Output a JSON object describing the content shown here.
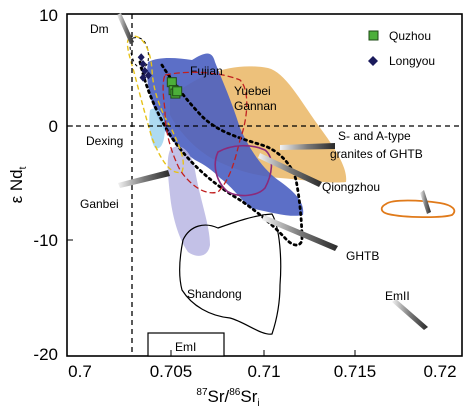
{
  "chart_data": {
    "type": "scatter",
    "xlabel": "87Sr/86Sr",
    "ylabel": "ε Nd",
    "xlim": [
      0.7,
      0.72
    ],
    "ylim": [
      -20,
      10
    ],
    "x_ticks": [
      "0.7",
      "0.705",
      "0.71",
      "0.715",
      "0.72"
    ],
    "y_ticks": [
      "10",
      "0",
      "-10",
      "-20"
    ],
    "legend": {
      "placement": "top-right"
    },
    "series": [
      {
        "name": "Quzhou",
        "marker": "square",
        "color": "#4caf3a",
        "points": [
          [
            0.7051,
            4.0
          ],
          [
            0.7052,
            3.3
          ],
          [
            0.7053,
            3.0
          ],
          [
            0.7054,
            3.2
          ]
        ]
      },
      {
        "name": "Longyou",
        "marker": "diamond",
        "color": "#1b1b5c",
        "points": [
          [
            0.7034,
            6.2
          ],
          [
            0.7035,
            5.6
          ],
          [
            0.7036,
            5.0
          ],
          [
            0.7035,
            4.4
          ],
          [
            0.7038,
            4.6
          ]
        ]
      }
    ],
    "fields": [
      {
        "label": "Dm",
        "color": "#000000"
      },
      {
        "label": "Fujian",
        "color": "#4a5fc1"
      },
      {
        "label": "Yuebei Gannan",
        "color": "#e8b15a"
      },
      {
        "label": "Dexing",
        "color": "#9fd3ef"
      },
      {
        "label": "Ganbei",
        "color": "#b8b6e3"
      },
      {
        "label": "S- and A-type granites of GHTB",
        "color": "#e07a1a"
      },
      {
        "label": "Qiongzhou",
        "color": "#8b2a7a"
      },
      {
        "label": "GHTB",
        "color": "#000000"
      },
      {
        "label": "Shandong",
        "color": "#000000"
      },
      {
        "label": "EmII",
        "color": "#000000"
      },
      {
        "label": "EmI",
        "color": "#000000"
      }
    ],
    "reference_lines": {
      "x": 0.7045,
      "y": 0
    }
  }
}
